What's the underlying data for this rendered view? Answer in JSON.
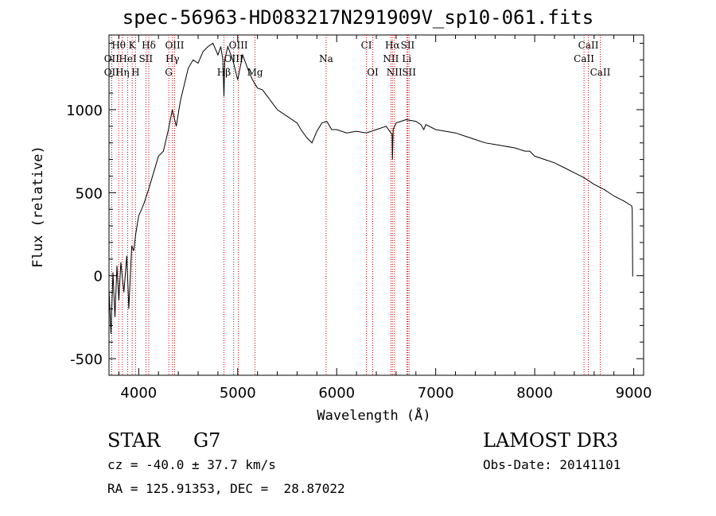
{
  "chart_data": {
    "type": "line",
    "title": "spec-56963-HD083217N291909V_sp10-061.fits",
    "xlabel": "Wavelength (Å)",
    "ylabel": "Flux (relative)",
    "xlim": [
      3700,
      9100
    ],
    "ylim": [
      -600,
      1450
    ],
    "xticks": [
      4000,
      5000,
      6000,
      7000,
      8000,
      9000
    ],
    "yticks": [
      -500,
      0,
      500,
      1000
    ],
    "line_color": "#000000",
    "marker_color": "#cc0000",
    "series": [
      {
        "x": [
          3700,
          3720,
          3740,
          3760,
          3780,
          3800,
          3820,
          3850,
          3880,
          3900,
          3930,
          3950,
          3970,
          4000,
          4050,
          4100,
          4150,
          4200,
          4250,
          4300,
          4340,
          4380,
          4420,
          4460,
          4500,
          4550,
          4600,
          4650,
          4700,
          4750,
          4800,
          4830,
          4850,
          4861,
          4870,
          4900,
          4950,
          5000,
          5050,
          5100,
          5150,
          5200,
          5250,
          5300,
          5400,
          5500,
          5600,
          5650,
          5700,
          5750,
          5800,
          5850,
          5900,
          5950,
          6000,
          6100,
          6200,
          6300,
          6400,
          6500,
          6560,
          6563,
          6570,
          6600,
          6700,
          6800,
          6850,
          6880,
          6900,
          7000,
          7100,
          7200,
          7300,
          7400,
          7500,
          7600,
          7700,
          7800,
          7900,
          7950,
          8000,
          8100,
          8200,
          8300,
          8400,
          8500,
          8600,
          8700,
          8800,
          8900,
          8980,
          8985,
          8990
        ],
        "y": [
          -80,
          -350,
          20,
          -250,
          60,
          -150,
          80,
          -100,
          120,
          -200,
          180,
          150,
          250,
          360,
          430,
          520,
          620,
          720,
          750,
          880,
          1000,
          900,
          1050,
          1150,
          1250,
          1300,
          1280,
          1350,
          1380,
          1400,
          1330,
          1380,
          1300,
          1080,
          1300,
          1380,
          1300,
          1180,
          1330,
          1250,
          1180,
          1130,
          1120,
          1080,
          1000,
          960,
          920,
          870,
          830,
          800,
          870,
          920,
          930,
          880,
          880,
          860,
          870,
          860,
          880,
          900,
          850,
          700,
          880,
          920,
          940,
          930,
          910,
          880,
          910,
          880,
          870,
          860,
          840,
          820,
          800,
          790,
          780,
          770,
          750,
          750,
          720,
          700,
          680,
          650,
          620,
          590,
          550,
          520,
          480,
          450,
          420,
          400,
          -5
        ]
      }
    ],
    "lines_upper": [
      {
        "label": "Hθ",
        "x": 3798
      },
      {
        "label": "K",
        "x": 3934
      },
      {
        "label": "Hδ",
        "x": 4102
      },
      {
        "label": "OIII",
        "x": 4363
      },
      {
        "label": "OIII",
        "x": 5007
      },
      {
        "label": "CI",
        "x": 6300
      },
      {
        "label": "Hα",
        "x": 6563
      },
      {
        "label": "SII",
        "x": 6717
      },
      {
        "label": "CaII",
        "x": 8542
      }
    ],
    "lines_middle": [
      {
        "label": "OII",
        "x": 3727
      },
      {
        "label": "HeI",
        "x": 3889
      },
      {
        "label": "SII",
        "x": 4072
      },
      {
        "label": "Hγ",
        "x": 4341
      },
      {
        "label": "OIII",
        "x": 4959
      },
      {
        "label": "Na",
        "x": 5893
      },
      {
        "label": "NII",
        "x": 6548
      },
      {
        "label": "Li",
        "x": 6708
      },
      {
        "label": "CaII",
        "x": 8498
      }
    ],
    "lines_lower": [
      {
        "label": "OII",
        "x": 3727
      },
      {
        "label": "Hη",
        "x": 3835
      },
      {
        "label": "H",
        "x": 3968
      },
      {
        "label": "G",
        "x": 4304
      },
      {
        "label": "Hβ",
        "x": 4861
      },
      {
        "label": "Mg",
        "x": 5175
      },
      {
        "label": "OI",
        "x": 6364
      },
      {
        "label": "NII",
        "x": 6583
      },
      {
        "label": "SII",
        "x": 6731
      },
      {
        "label": "CaII",
        "x": 8662
      }
    ]
  },
  "info": {
    "object_class": "STAR",
    "subclass": "G7",
    "survey": "LAMOST DR3",
    "cz": "cz = -40.0 ± 37.7 km/s",
    "obs_date": "Obs-Date: 20141101",
    "radec": "RA = 125.91353, DEC =  28.87022"
  }
}
